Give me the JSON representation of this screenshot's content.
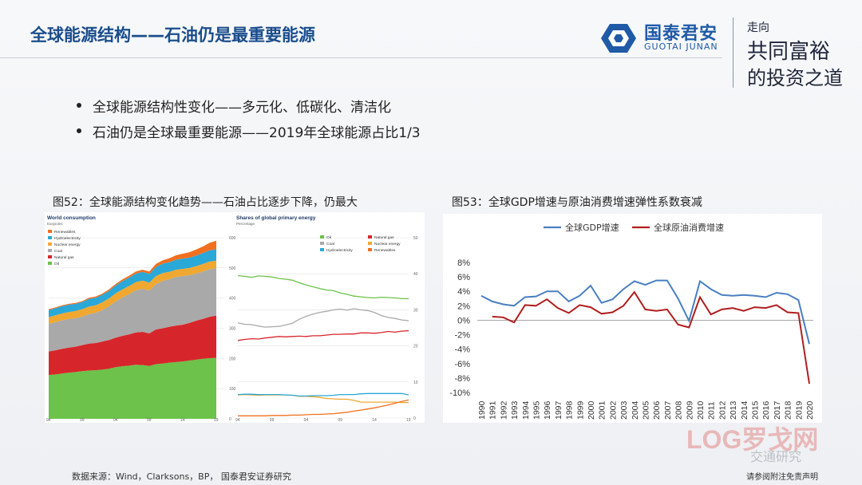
{
  "header": {
    "title": "全球能源结构——石油仍是最重要能源",
    "logo_cn": "国泰君安",
    "logo_en": "GUOTAI JUNAN",
    "slogan_line1": "走向",
    "slogan_line2": "共同富裕",
    "slogan_line3": "的投资之道"
  },
  "bullets": [
    "全球能源结构性变化——多元化、低碳化、清洁化",
    "石油仍是全球最重要能源——2019年全球能源占比1/3"
  ],
  "figure52": {
    "caption": "图52：全球能源结构变化趋势——石油占比逐步下降，仍最大"
  },
  "figure53": {
    "caption": "图53：全球GDP增速与原油消费增速弹性系数衰减"
  },
  "footer": {
    "source": "数据来源：Wind，Clarksons，BP， 国泰君安证券研究",
    "disclaimer": "请参阅附注免责声明",
    "watermark_logo": "LOG罗戈网",
    "watermark_text": "交通研究"
  },
  "chart_data": [
    {
      "type": "area",
      "title": "World consumption",
      "subtitle": "Exajoules",
      "x": [
        94,
        95,
        96,
        97,
        98,
        99,
        0,
        1,
        2,
        3,
        4,
        5,
        6,
        7,
        8,
        9,
        10,
        11,
        12,
        13,
        14,
        15,
        16,
        17,
        18,
        19
      ],
      "x_ticks": [
        "94",
        "99",
        "04",
        "09",
        "14",
        "19"
      ],
      "y_ticks": [
        "0",
        "100",
        "200",
        "300",
        "400",
        "500",
        "600"
      ],
      "ylim": [
        0,
        600
      ],
      "legend": "top-left",
      "series": [
        {
          "name": "Oil",
          "color": "#6cc24a",
          "values": [
            145,
            147,
            150,
            153,
            155,
            158,
            160,
            161,
            163,
            166,
            171,
            174,
            176,
            179,
            178,
            175,
            181,
            183,
            186,
            188,
            190,
            193,
            196,
            199,
            201,
            202
          ]
        },
        {
          "name": "Natural gas",
          "color": "#d7262b",
          "values": [
            78,
            80,
            82,
            83,
            84,
            86,
            89,
            90,
            93,
            95,
            98,
            101,
            104,
            107,
            110,
            108,
            115,
            117,
            119,
            121,
            122,
            125,
            129,
            132,
            137,
            140
          ]
        },
        {
          "name": "Coal",
          "color": "#a9a9a9",
          "values": [
            92,
            93,
            94,
            95,
            94,
            95,
            98,
            100,
            104,
            112,
            120,
            127,
            133,
            140,
            143,
            142,
            150,
            157,
            158,
            161,
            161,
            158,
            156,
            157,
            158,
            157
          ]
        },
        {
          "name": "Nuclear energy",
          "color": "#f0a830",
          "values": [
            22,
            23,
            23,
            23,
            24,
            24,
            25,
            25,
            26,
            26,
            27,
            27,
            27,
            27,
            27,
            26,
            27,
            26,
            24,
            24,
            24,
            24,
            25,
            25,
            25,
            25
          ]
        },
        {
          "name": "Hydroelectricity",
          "color": "#2aa8d8",
          "values": [
            23,
            23,
            24,
            24,
            24,
            24,
            25,
            25,
            25,
            25,
            26,
            27,
            28,
            28,
            29,
            29,
            30,
            31,
            32,
            33,
            34,
            34,
            35,
            36,
            37,
            38
          ]
        },
        {
          "name": "Renewables",
          "color": "#f07020",
          "values": [
            3,
            3,
            3,
            3,
            3,
            3,
            4,
            4,
            4,
            5,
            5,
            6,
            6,
            7,
            7,
            8,
            10,
            11,
            13,
            15,
            16,
            18,
            20,
            22,
            25,
            28
          ]
        }
      ]
    },
    {
      "type": "line",
      "title": "Shares of global primary energy",
      "subtitle": "Percentage",
      "x": [
        94,
        95,
        96,
        97,
        98,
        99,
        0,
        1,
        2,
        3,
        4,
        5,
        6,
        7,
        8,
        9,
        10,
        11,
        12,
        13,
        14,
        15,
        16,
        17,
        18,
        19
      ],
      "x_ticks": [
        "94",
        "99",
        "04",
        "09",
        "14",
        "19"
      ],
      "y_ticks": [
        "0",
        "10",
        "20",
        "30",
        "40",
        "50"
      ],
      "ylim": [
        0,
        50
      ],
      "legend": "top",
      "series": [
        {
          "name": "Oil",
          "color": "#6cc24a",
          "values": [
            39.5,
            39.3,
            39.0,
            39.4,
            39.3,
            39.1,
            38.7,
            38.5,
            38.2,
            37.5,
            36.9,
            36.4,
            35.9,
            35.5,
            35.3,
            34.7,
            34.3,
            33.8,
            33.6,
            33.4,
            33.3,
            33.5,
            33.4,
            33.3,
            33.1,
            33.1
          ]
        },
        {
          "name": "Natural gas",
          "color": "#d7262b",
          "values": [
            21.5,
            21.8,
            22.0,
            21.9,
            22.2,
            22.4,
            22.6,
            22.5,
            22.6,
            22.7,
            22.6,
            22.8,
            22.8,
            23.0,
            23.2,
            23.2,
            23.3,
            23.3,
            23.6,
            23.6,
            23.5,
            23.7,
            24.0,
            23.8,
            24.1,
            24.2
          ]
        },
        {
          "name": "Coal",
          "color": "#a9a9a9",
          "values": [
            26.4,
            26.0,
            25.9,
            25.5,
            25.2,
            25.3,
            25.4,
            25.8,
            26.3,
            27.4,
            28.2,
            28.8,
            29.3,
            29.6,
            30.0,
            30.2,
            29.9,
            30.3,
            30.0,
            29.8,
            29.3,
            28.4,
            27.9,
            27.6,
            27.2,
            27.0
          ]
        },
        {
          "name": "Nuclear energy",
          "color": "#f0a830",
          "values": [
            6.4,
            6.5,
            6.4,
            6.3,
            6.4,
            6.4,
            6.4,
            6.4,
            6.3,
            6.0,
            6.0,
            5.9,
            5.7,
            5.4,
            5.3,
            5.2,
            5.2,
            4.9,
            4.4,
            4.4,
            4.4,
            4.4,
            4.4,
            4.4,
            4.3,
            4.3
          ]
        },
        {
          "name": "Hydroelectricity",
          "color": "#2aa8d8",
          "values": [
            6.5,
            6.6,
            6.6,
            6.5,
            6.5,
            6.5,
            6.5,
            6.4,
            6.3,
            6.1,
            6.1,
            6.2,
            6.2,
            6.2,
            6.3,
            6.5,
            6.5,
            6.5,
            6.7,
            6.8,
            6.8,
            6.8,
            6.8,
            6.8,
            6.8,
            6.4
          ]
        },
        {
          "name": "Renewables",
          "color": "#f07020",
          "values": [
            0.6,
            0.6,
            0.6,
            0.6,
            0.6,
            0.7,
            0.7,
            0.7,
            0.8,
            0.8,
            0.9,
            1.0,
            1.0,
            1.1,
            1.2,
            1.4,
            1.6,
            1.9,
            2.2,
            2.5,
            2.8,
            3.2,
            3.6,
            4.1,
            4.6,
            5.0
          ]
        }
      ]
    },
    {
      "type": "line",
      "title": "",
      "x": [
        "1990",
        "1991",
        "1992",
        "1993",
        "1994",
        "1995",
        "1996",
        "1997",
        "1998",
        "1999",
        "2000",
        "2001",
        "2002",
        "2003",
        "2004",
        "2005",
        "2006",
        "2007",
        "2008",
        "2009",
        "2010",
        "2011",
        "2012",
        "2013",
        "2014",
        "2015",
        "2016",
        "2017",
        "2018",
        "2019",
        "2020"
      ],
      "y_ticks": [
        "-10%",
        "-8%",
        "-6%",
        "-4%",
        "-2%",
        "0%",
        "2%",
        "4%",
        "6%",
        "8%"
      ],
      "ylim": [
        -10,
        8
      ],
      "legend": "top-left",
      "grid": false,
      "series": [
        {
          "name": "全球GDP增速",
          "color": "#4a7fc1",
          "values": [
            3.4,
            2.6,
            2.2,
            2.0,
            3.2,
            3.3,
            4.0,
            4.0,
            2.6,
            3.4,
            4.8,
            2.4,
            2.9,
            4.3,
            5.4,
            4.9,
            5.5,
            5.5,
            3.0,
            -0.1,
            5.4,
            4.3,
            3.5,
            3.4,
            3.5,
            3.4,
            3.2,
            3.8,
            3.6,
            2.8,
            -3.3
          ]
        },
        {
          "name": "全球原油消费增速",
          "color": "#b01e1e",
          "values": [
            null,
            0.5,
            0.4,
            -0.3,
            2.1,
            2.0,
            2.9,
            1.7,
            1.0,
            2.1,
            1.8,
            0.9,
            1.1,
            2.0,
            3.9,
            1.5,
            1.3,
            1.5,
            -0.6,
            -1.0,
            3.2,
            0.8,
            1.5,
            1.7,
            1.3,
            1.8,
            1.7,
            2.1,
            1.1,
            1.0,
            -8.8
          ]
        }
      ]
    }
  ]
}
